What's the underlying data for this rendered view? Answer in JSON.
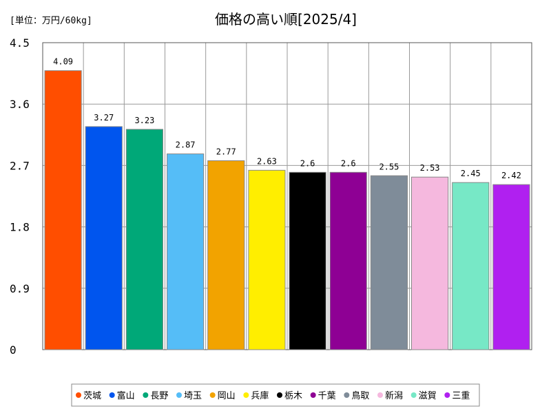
{
  "chart_data": {
    "type": "bar",
    "title": "価格の高い順[2025/4]",
    "unit_label": "[単位：万円/60kg]",
    "ylim": [
      0,
      4.5
    ],
    "yticks": [
      "0",
      "0.9",
      "1.8",
      "2.7",
      "3.6",
      "4.5"
    ],
    "ytick_values": [
      0,
      0.9,
      1.8,
      2.7,
      3.6,
      4.5
    ],
    "grid": true,
    "legend_position": "bottom",
    "categories": [
      "茨城",
      "富山",
      "長野",
      "埼玉",
      "岡山",
      "兵庫",
      "栃木",
      "千葉",
      "鳥取",
      "新潟",
      "滋賀",
      "三重"
    ],
    "values": [
      4.09,
      3.27,
      3.23,
      2.87,
      2.77,
      2.63,
      2.6,
      2.6,
      2.55,
      2.53,
      2.45,
      2.42
    ],
    "value_labels": [
      "4.09",
      "3.27",
      "3.23",
      "2.87",
      "2.77",
      "2.63",
      "2.6",
      "2.6",
      "2.55",
      "2.53",
      "2.45",
      "2.42"
    ],
    "colors": [
      "#ff4e00",
      "#0055ee",
      "#00a878",
      "#55bdf7",
      "#f2a300",
      "#ffee00",
      "#000000",
      "#8e0094",
      "#7f8c99",
      "#f5b8de",
      "#77e8c6",
      "#b020f0"
    ]
  }
}
